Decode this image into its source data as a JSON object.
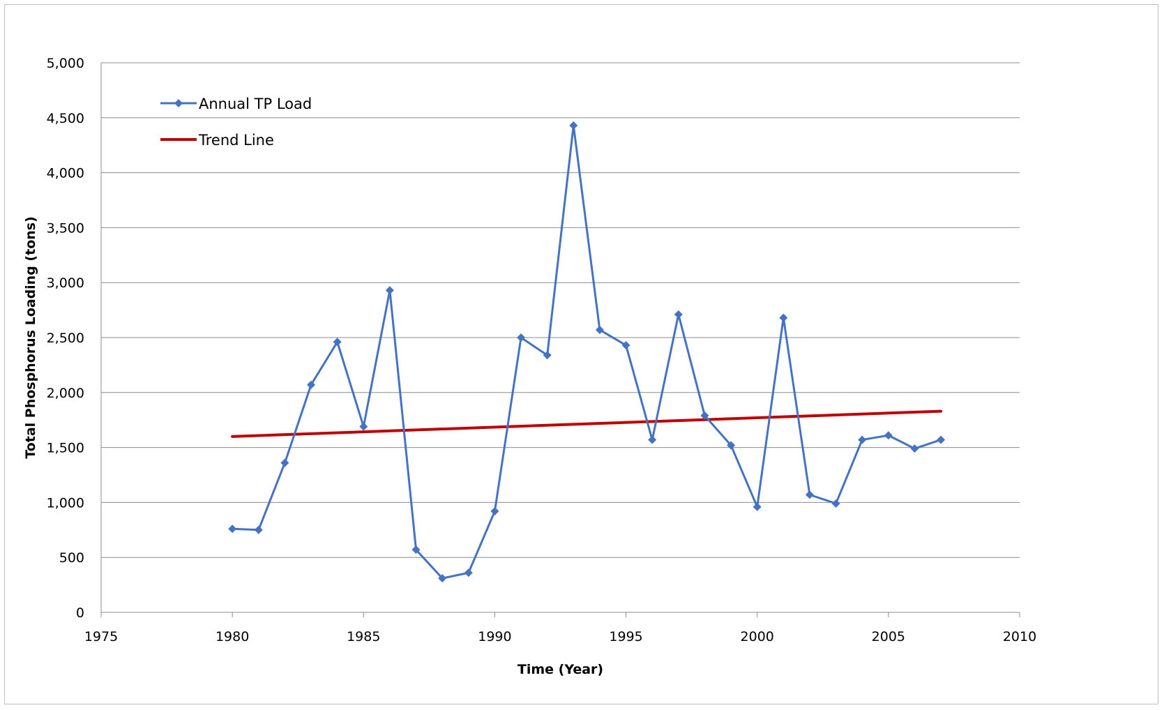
{
  "chart_data": {
    "type": "line",
    "title": "",
    "xlabel": "Time (Year)",
    "ylabel": "Total Phosphorus Loading (tons)",
    "xlim": [
      1975,
      2010
    ],
    "ylim": [
      0,
      5000
    ],
    "x_ticks": [
      1975,
      1980,
      1985,
      1990,
      1995,
      2000,
      2005,
      2010
    ],
    "y_ticks": [
      0,
      500,
      1000,
      1500,
      2000,
      2500,
      3000,
      3500,
      4000,
      4500,
      5000
    ],
    "x_tick_labels": [
      "1975",
      "1980",
      "1985",
      "1990",
      "1995",
      "2000",
      "2005",
      "2010"
    ],
    "y_tick_labels": [
      "0",
      "500",
      "1,000",
      "1,500",
      "2,000",
      "2,500",
      "3,000",
      "3,500",
      "4,000",
      "4,500",
      "5,000"
    ],
    "grid": "horizontal",
    "legend_position": "top-left",
    "series": [
      {
        "name": "Annual TP Load",
        "color": "#4472c4",
        "marker": "diamond",
        "x": [
          1980,
          1981,
          1982,
          1983,
          1984,
          1985,
          1986,
          1987,
          1988,
          1989,
          1990,
          1991,
          1992,
          1993,
          1994,
          1995,
          1996,
          1997,
          1998,
          1999,
          2000,
          2001,
          2002,
          2003,
          2004,
          2005,
          2006,
          2007
        ],
        "values": [
          760,
          750,
          1360,
          2070,
          2460,
          1690,
          2930,
          570,
          310,
          360,
          920,
          2500,
          2340,
          4430,
          2570,
          2430,
          1570,
          2710,
          1790,
          1520,
          960,
          2680,
          1070,
          990,
          1570,
          1610,
          1490,
          1570
        ]
      },
      {
        "name": "Trend Line",
        "color": "#c00000",
        "marker": "none",
        "x": [
          1980,
          2007
        ],
        "values": [
          1600,
          1830
        ]
      }
    ]
  }
}
